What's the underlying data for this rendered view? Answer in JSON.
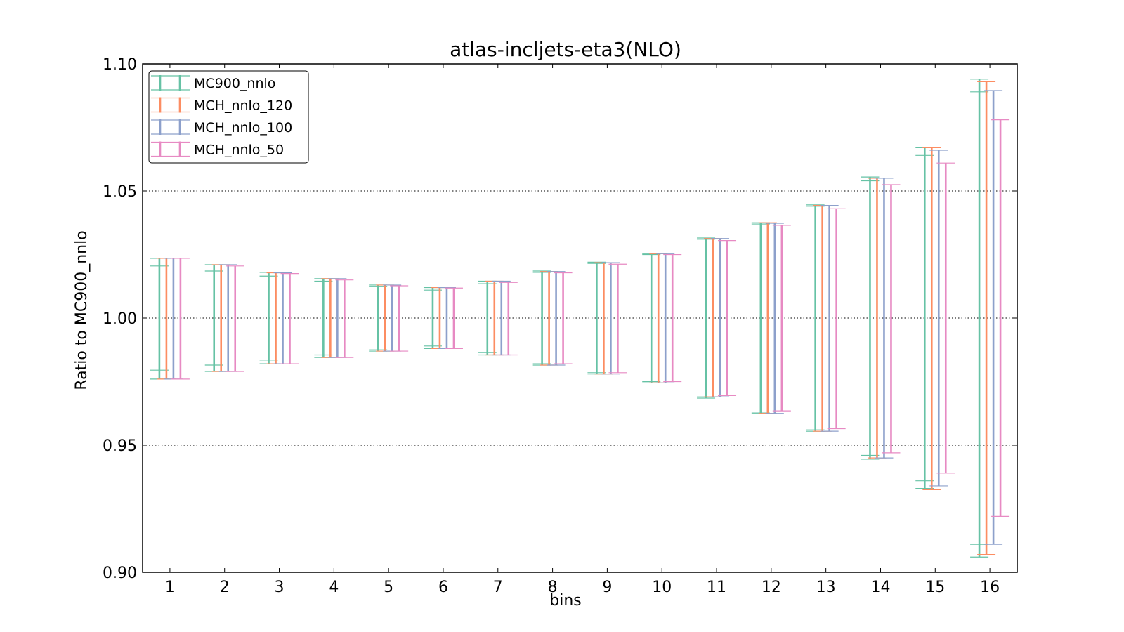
{
  "chart_data": {
    "type": "errorbar",
    "title": "atlas-incljets-eta3(NLO)",
    "xlabel": "bins",
    "ylabel": "Ratio to MC900_nnlo",
    "xlim": [
      0.5,
      16.5
    ],
    "ylim": [
      0.9,
      1.1
    ],
    "xticks": [
      "1",
      "2",
      "3",
      "4",
      "5",
      "6",
      "7",
      "8",
      "9",
      "10",
      "11",
      "12",
      "13",
      "14",
      "15",
      "16"
    ],
    "yticks": [
      "0.90",
      "0.95",
      "1.00",
      "1.05",
      "1.10"
    ],
    "ytick_values": [
      0.9,
      0.95,
      1.0,
      1.05,
      1.1
    ],
    "grid_y": [
      0.95,
      1.0,
      1.05
    ],
    "legend_position": "top-left",
    "x": [
      1,
      2,
      3,
      4,
      5,
      6,
      7,
      8,
      9,
      10,
      11,
      12,
      13,
      14,
      15,
      16
    ],
    "series": [
      {
        "name": "MC900_nnlo",
        "color": "#66c2a5",
        "center": [
          1.0,
          1.0,
          1.0,
          1.0,
          1.0,
          1.0,
          1.0,
          1.0,
          1.0,
          1.0,
          1.0,
          1.0,
          1.0,
          1.0,
          1.0,
          1.0
        ],
        "lower": [
          0.976,
          0.979,
          0.982,
          0.9845,
          0.987,
          0.988,
          0.9855,
          0.9815,
          0.978,
          0.9745,
          0.9685,
          0.9625,
          0.9555,
          0.9445,
          0.933,
          0.906
        ],
        "upper": [
          1.0235,
          1.021,
          1.018,
          1.0155,
          1.013,
          1.012,
          1.0145,
          1.0185,
          1.022,
          1.0255,
          1.0315,
          1.0375,
          1.0445,
          1.0555,
          1.067,
          1.094
        ],
        "inner_lower": [
          0.9795,
          0.9815,
          0.9835,
          0.9855,
          0.9875,
          0.989,
          0.9865,
          0.982,
          0.9785,
          0.975,
          0.969,
          0.963,
          0.956,
          0.946,
          0.936,
          0.911
        ],
        "inner_upper": [
          1.0205,
          1.0185,
          1.0165,
          1.0145,
          1.0125,
          1.011,
          1.0135,
          1.018,
          1.0215,
          1.025,
          1.031,
          1.037,
          1.044,
          1.054,
          1.064,
          1.089
        ]
      },
      {
        "name": "MCH_nnlo_120",
        "color": "#fc8d62",
        "lower": [
          0.976,
          0.979,
          0.982,
          0.9845,
          0.987,
          0.988,
          0.9855,
          0.9815,
          0.978,
          0.9745,
          0.969,
          0.9625,
          0.9555,
          0.945,
          0.9325,
          0.907
        ],
        "upper": [
          1.0235,
          1.021,
          1.0178,
          1.0155,
          1.013,
          1.012,
          1.0145,
          1.0183,
          1.0218,
          1.0255,
          1.0313,
          1.0375,
          1.0443,
          1.055,
          1.067,
          1.093
        ]
      },
      {
        "name": "MCH_nnlo_100",
        "color": "#8da0cb",
        "lower": [
          0.976,
          0.979,
          0.982,
          0.9845,
          0.987,
          0.988,
          0.9855,
          0.9815,
          0.978,
          0.9745,
          0.969,
          0.9625,
          0.9555,
          0.945,
          0.934,
          0.911
        ],
        "upper": [
          1.0235,
          1.021,
          1.0178,
          1.0155,
          1.013,
          1.012,
          1.0145,
          1.0183,
          1.0218,
          1.0255,
          1.0313,
          1.0373,
          1.0443,
          1.055,
          1.066,
          1.0895
        ]
      },
      {
        "name": "MCH_nnlo_50",
        "color": "#e78ac3",
        "lower": [
          0.976,
          0.979,
          0.982,
          0.9845,
          0.987,
          0.988,
          0.9855,
          0.982,
          0.9785,
          0.975,
          0.9695,
          0.9635,
          0.9565,
          0.947,
          0.939,
          0.922
        ],
        "upper": [
          1.0235,
          1.0205,
          1.0175,
          1.015,
          1.0127,
          1.0118,
          1.014,
          1.0178,
          1.0212,
          1.025,
          1.0305,
          1.0365,
          1.043,
          1.0525,
          1.061,
          1.078
        ]
      }
    ]
  }
}
